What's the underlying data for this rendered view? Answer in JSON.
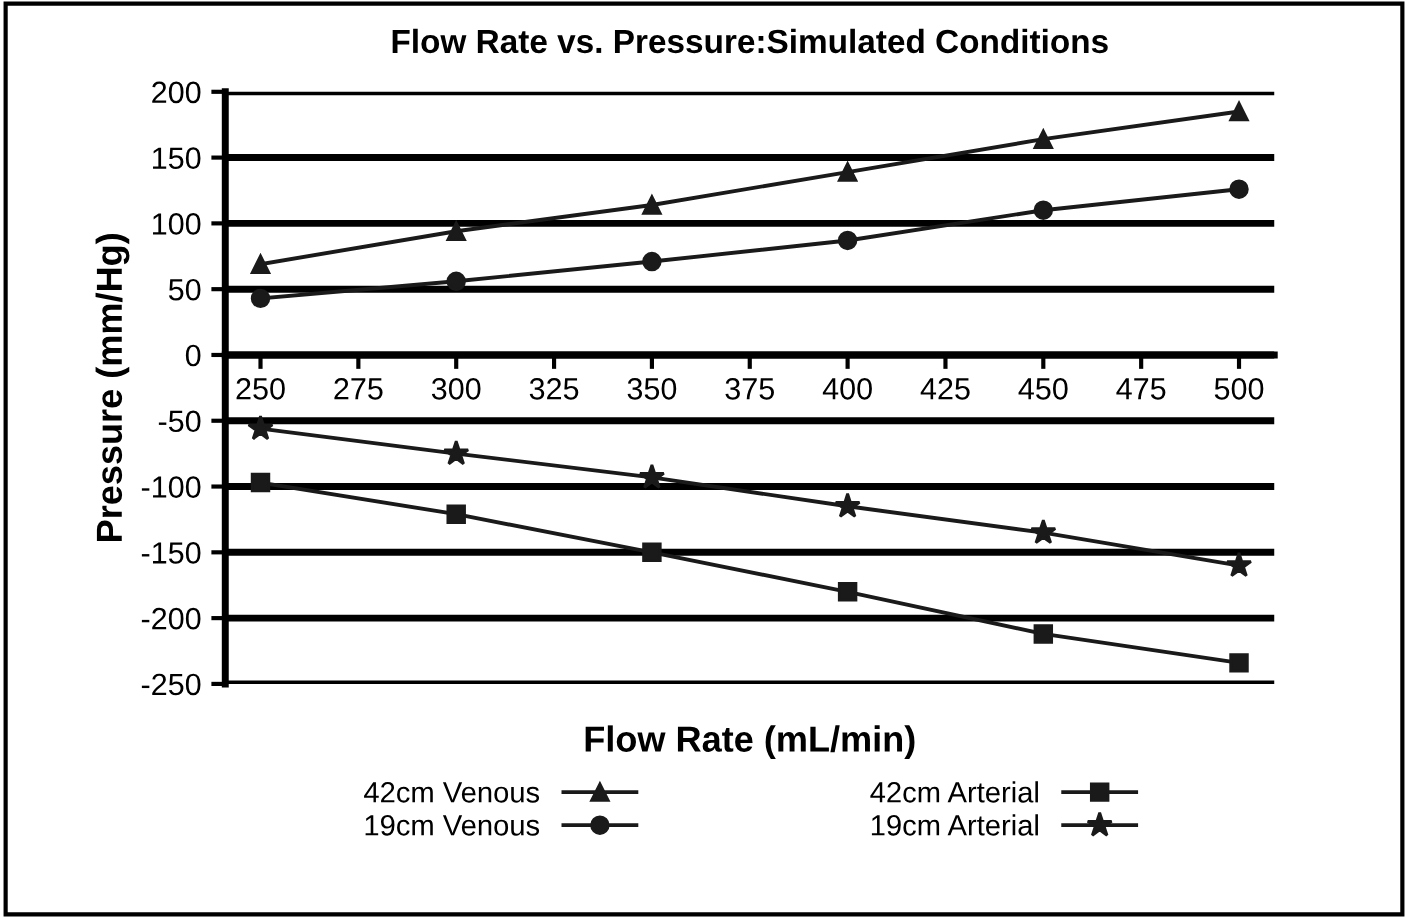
{
  "chart_data": {
    "type": "line",
    "title": "Flow Rate vs. Pressure:Simulated Conditions",
    "xlabel": "Flow Rate (mL/min)",
    "ylabel": "Pressure (mm/Hg)",
    "x": [
      250,
      300,
      350,
      400,
      450,
      500
    ],
    "series": [
      {
        "name": "42cm Venous",
        "color": "#1a1a1a",
        "marker": "triangle",
        "values": [
          69,
          94,
          114,
          139,
          164,
          185
        ]
      },
      {
        "name": "19cm Venous",
        "color": "#1a1a1a",
        "marker": "circle",
        "values": [
          43,
          56,
          71,
          87,
          110,
          126
        ]
      },
      {
        "name": "42cm Arterial",
        "color": "#1a1a1a",
        "marker": "square",
        "values": [
          -97,
          -121,
          -150,
          -180,
          -212,
          -234
        ]
      },
      {
        "name": "19cm Arterial",
        "color": "#1a1a1a",
        "marker": "star",
        "values": [
          -56,
          -75,
          -93,
          -115,
          -135,
          -160
        ]
      }
    ],
    "xlim": [
      241,
      509
    ],
    "ylim": [
      -250,
      200
    ],
    "xticks": [
      250,
      275,
      300,
      325,
      350,
      375,
      400,
      425,
      450,
      475,
      500
    ],
    "yticks": [
      -250,
      -200,
      -150,
      -100,
      -50,
      0,
      50,
      100,
      150,
      200
    ],
    "grid": "y",
    "legend": "bottom",
    "line_style": "solid"
  }
}
